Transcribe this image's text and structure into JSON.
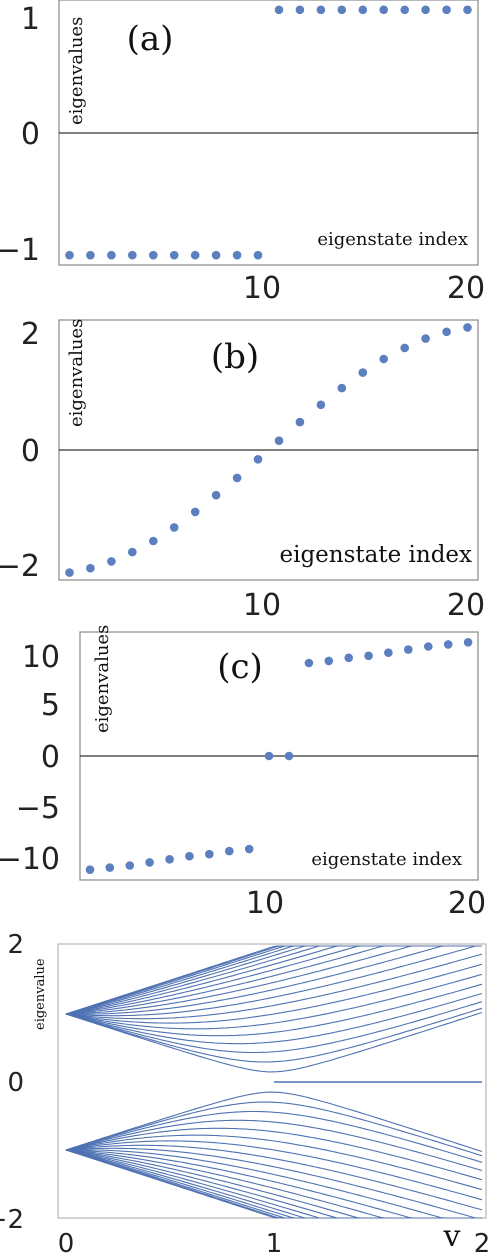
{
  "chart_data": [
    {
      "type": "scatter",
      "title": "(a)",
      "ylabel": "eigenvalues",
      "xlabel": "eigenstate index",
      "x": [
        1,
        2,
        3,
        4,
        5,
        6,
        7,
        8,
        9,
        10,
        11,
        12,
        13,
        14,
        15,
        16,
        17,
        18,
        19,
        20
      ],
      "y": [
        -1,
        -1,
        -1,
        -1,
        -1,
        -1,
        -1,
        -1,
        -1,
        -1,
        1,
        1,
        1,
        1,
        1,
        1,
        1,
        1,
        1,
        1
      ],
      "xlim": [
        0.5,
        20.5
      ],
      "ylim": [
        -1.08,
        1.08
      ],
      "xticks": [
        "10",
        "20"
      ],
      "yticks": [
        "1",
        "0",
        "−1"
      ],
      "color": "#5b7fbf"
    },
    {
      "type": "scatter",
      "title": "(b)",
      "ylabel": "eigenvalues",
      "xlabel": "eigenstate index",
      "x": [
        1,
        2,
        3,
        4,
        5,
        6,
        7,
        8,
        9,
        10,
        11,
        12,
        13,
        14,
        15,
        16,
        17,
        18,
        19,
        20
      ],
      "y": [
        -1.98,
        -1.91,
        -1.8,
        -1.65,
        -1.47,
        -1.25,
        -1.0,
        -0.73,
        -0.45,
        -0.15,
        0.15,
        0.45,
        0.73,
        1.0,
        1.25,
        1.47,
        1.65,
        1.8,
        1.91,
        1.98
      ],
      "xlim": [
        0.5,
        20.5
      ],
      "ylim": [
        -2.1,
        2.1
      ],
      "xticks": [
        "10",
        "20"
      ],
      "yticks": [
        "2",
        "0",
        "−2"
      ],
      "color": "#5b7fbf"
    },
    {
      "type": "scatter",
      "title": "(c)",
      "ylabel": "eigenvalues",
      "xlabel": "eigenstate index",
      "x": [
        1,
        2,
        3,
        4,
        5,
        6,
        7,
        8,
        9,
        10,
        11,
        12,
        13,
        14,
        15,
        16,
        17,
        18,
        19,
        20
      ],
      "y": [
        -11.0,
        -10.8,
        -10.6,
        -10.3,
        -10.0,
        -9.7,
        -9.5,
        -9.2,
        -9.0,
        0,
        0,
        9.0,
        9.2,
        9.5,
        9.7,
        10.0,
        10.3,
        10.6,
        10.8,
        11.0
      ],
      "xlim": [
        0.5,
        20.5
      ],
      "ylim": [
        -12,
        12
      ],
      "xticks": [
        "10",
        "20"
      ],
      "yticks": [
        "10",
        "5",
        "0",
        "−5",
        "−10"
      ],
      "color": "#5b7fbf"
    },
    {
      "type": "line",
      "title": "",
      "ylabel": "eigenvalue",
      "xlabel": "v",
      "n_levels": 20,
      "x_range": [
        0,
        2
      ],
      "ylim": [
        -2,
        2
      ],
      "xticks": [
        "0",
        "1",
        "2"
      ],
      "yticks": [
        "2",
        "0",
        "−2"
      ],
      "color": "#4f72b3"
    }
  ]
}
